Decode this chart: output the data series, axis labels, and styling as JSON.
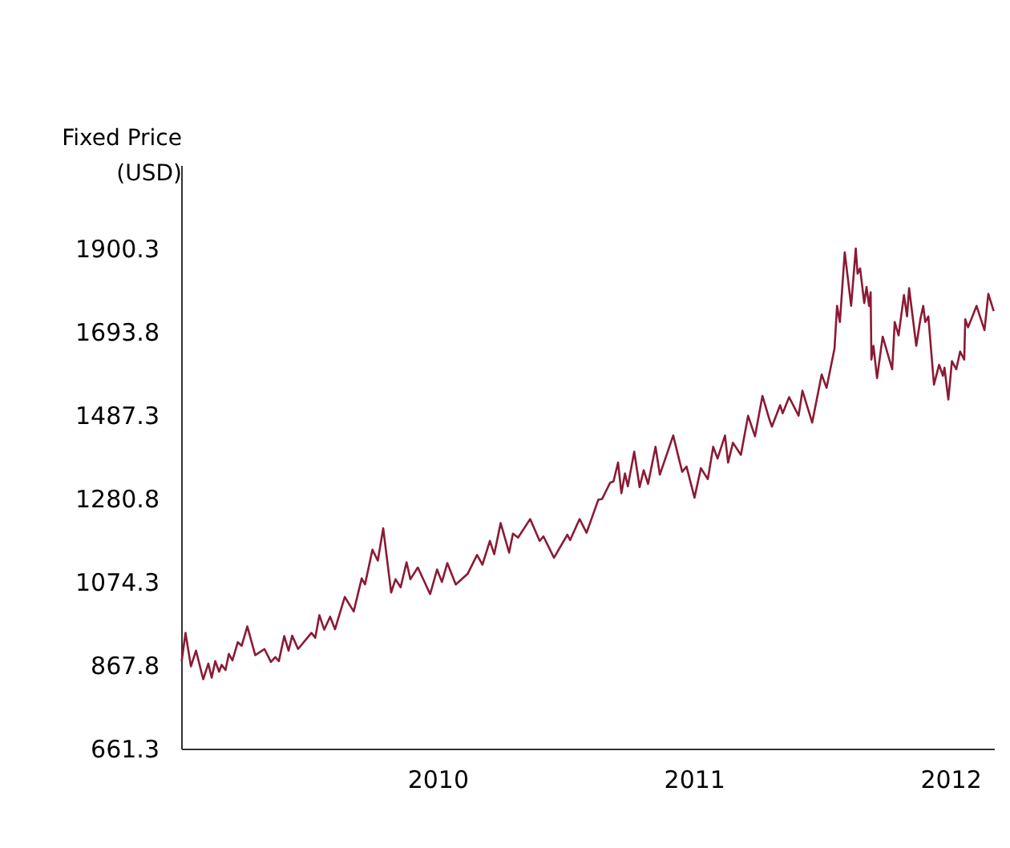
{
  "chart_data": {
    "type": "line",
    "ylabel": "Fixed Price\n(USD)",
    "xlim": [
      2009,
      2012.17
    ],
    "xticks": [
      2010,
      2011,
      2012
    ],
    "ylim": [
      661.3,
      2106.8
    ],
    "yticks": [
      661.3,
      867.8,
      1074.3,
      1280.8,
      1487.3,
      1693.8,
      1900.3
    ],
    "grid": false,
    "legend": false,
    "marker": "none",
    "line_style": "solid",
    "series": [
      {
        "color": "#8b1a35",
        "x": [
          2009.002,
          2009.017,
          2009.038,
          2009.058,
          2009.086,
          2009.106,
          2009.119,
          2009.133,
          2009.148,
          2009.158,
          2009.173,
          2009.186,
          2009.2,
          2009.221,
          2009.236,
          2009.258,
          2009.289,
          2009.325,
          2009.35,
          2009.367,
          2009.381,
          2009.402,
          2009.419,
          2009.433,
          2009.456,
          2009.508,
          2009.523,
          2009.539,
          2009.558,
          2009.581,
          2009.6,
          2009.638,
          2009.673,
          2009.704,
          2009.717,
          2009.746,
          2009.767,
          2009.788,
          2009.819,
          2009.836,
          2009.856,
          2009.879,
          2009.894,
          2009.923,
          2009.971,
          2009.998,
          2010.017,
          2010.038,
          2010.071,
          2010.117,
          2010.154,
          2010.175,
          2010.204,
          2010.221,
          2010.246,
          2010.279,
          2010.294,
          2010.314,
          2010.361,
          2010.398,
          2010.413,
          2010.454,
          2010.506,
          2010.517,
          2010.554,
          2010.581,
          2010.627,
          2010.642,
          2010.673,
          2010.686,
          2010.704,
          2010.717,
          2010.731,
          2010.742,
          2010.767,
          2010.788,
          2010.804,
          2010.821,
          2010.85,
          2010.867,
          2010.919,
          2010.954,
          2010.971,
          2011.002,
          2011.027,
          2011.054,
          2011.075,
          2011.092,
          2011.121,
          2011.133,
          2011.152,
          2011.183,
          2011.211,
          2011.238,
          2011.267,
          2011.294,
          2011.304,
          2011.336,
          2011.346,
          2011.371,
          2011.408,
          2011.423,
          2011.461,
          2011.498,
          2011.517,
          2011.548,
          2011.558,
          2011.569,
          2011.588,
          2011.613,
          2011.631,
          2011.638,
          2011.648,
          2011.664,
          2011.673,
          2011.683,
          2011.689,
          2011.692,
          2011.7,
          2011.714,
          2011.736,
          2011.773,
          2011.783,
          2011.798,
          2011.819,
          2011.831,
          2011.839,
          2011.867,
          2011.883,
          2011.894,
          2011.902,
          2011.914,
          2011.936,
          2011.956,
          2011.971,
          2011.977,
          2011.992,
          2012.006,
          2012.023,
          2012.038,
          2012.054,
          2012.058,
          2012.069,
          2012.102,
          2012.133,
          2012.148,
          2012.169
        ],
        "values": [
          878,
          948,
          865,
          904,
          833,
          872,
          837,
          878,
          852,
          869,
          856,
          896,
          880,
          925,
          916,
          964,
          893,
          908,
          876,
          888,
          878,
          940,
          904,
          941,
          908,
          948,
          936,
          992,
          956,
          988,
          957,
          1037,
          1001,
          1083,
          1068,
          1154,
          1127,
          1207,
          1048,
          1081,
          1061,
          1123,
          1081,
          1110,
          1044,
          1105,
          1074,
          1121,
          1068,
          1094,
          1141,
          1117,
          1176,
          1143,
          1220,
          1147,
          1194,
          1184,
          1230,
          1176,
          1187,
          1134,
          1191,
          1178,
          1230,
          1196,
          1278,
          1280,
          1320,
          1323,
          1370,
          1294,
          1343,
          1311,
          1397,
          1309,
          1351,
          1317,
          1409,
          1340,
          1437,
          1347,
          1360,
          1283,
          1356,
          1329,
          1409,
          1380,
          1437,
          1370,
          1419,
          1389,
          1486,
          1435,
          1535,
          1477,
          1459,
          1512,
          1492,
          1532,
          1486,
          1548,
          1469,
          1588,
          1555,
          1652,
          1758,
          1718,
          1891,
          1758,
          1900,
          1838,
          1851,
          1765,
          1805,
          1758,
          1792,
          1625,
          1659,
          1579,
          1682,
          1601,
          1718,
          1685,
          1785,
          1732,
          1802,
          1659,
          1725,
          1758,
          1718,
          1732,
          1563,
          1612,
          1585,
          1605,
          1526,
          1621,
          1601,
          1645,
          1625,
          1725,
          1705,
          1758,
          1698,
          1788,
          1745
        ]
      }
    ]
  }
}
